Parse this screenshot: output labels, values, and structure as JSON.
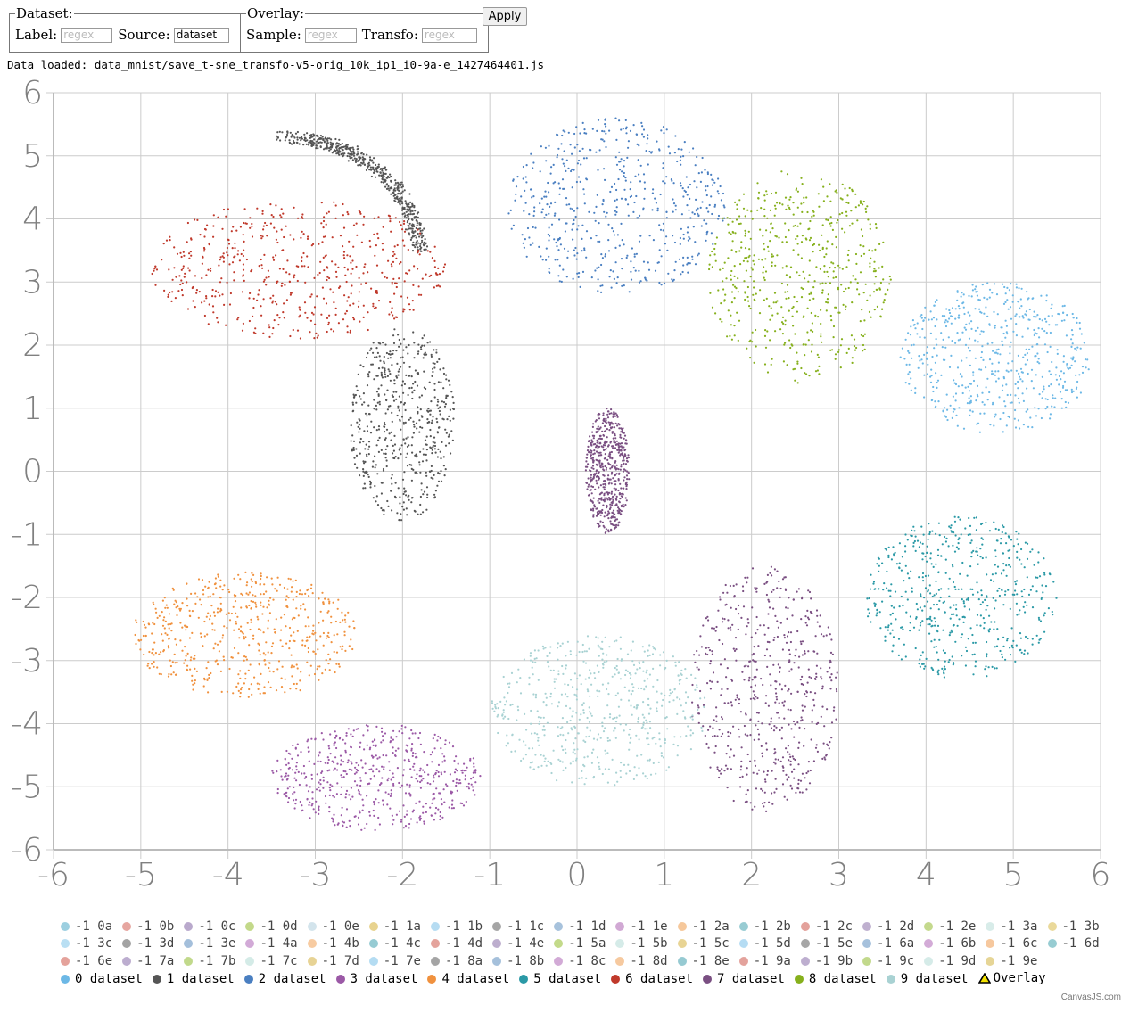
{
  "controls": {
    "dataset": {
      "legend": "Dataset:",
      "label_text": "Label:",
      "label_placeholder": "regex",
      "source_text": "Source:",
      "source_value": "dataset"
    },
    "overlay": {
      "legend": "Overlay:",
      "sample_text": "Sample:",
      "sample_placeholder": "regex",
      "transfo_text": "Transfo:",
      "transfo_placeholder": "regex"
    },
    "apply_label": "Apply"
  },
  "status": {
    "text": "Data loaded: data_mnist/save_t-sne_transfo-v5-orig_10k_ip1_i0-9a-e_1427464401.js"
  },
  "credit": "CanvasJS.com",
  "chart_data": {
    "type": "scatter",
    "xlim": [
      -6,
      6
    ],
    "ylim": [
      -6,
      6
    ],
    "x_ticks": [
      -6,
      -5,
      -4,
      -3,
      -2,
      -1,
      0,
      1,
      2,
      3,
      4,
      5,
      6
    ],
    "y_ticks": [
      -6,
      -5,
      -4,
      -3,
      -2,
      -1,
      0,
      1,
      2,
      3,
      4,
      5,
      6
    ],
    "grid": true,
    "legend_position": "bottom",
    "series": [
      {
        "label": "0 dataset",
        "color": "#6cb8e6",
        "clusters": [
          {
            "x": [
              3.7,
              5.9
            ],
            "y": [
              0.6,
              3.0
            ]
          }
        ]
      },
      {
        "label": "1 dataset",
        "color": "#555555",
        "clusters": [
          {
            "x": [
              -2.6,
              -1.4
            ],
            "y": [
              -0.8,
              2.3
            ]
          },
          {
            "arc_from": [
              -3.4,
              5.3
            ],
            "arc_mid": [
              -2.0,
              5.2
            ],
            "arc_to": [
              -1.8,
              3.5
            ]
          }
        ]
      },
      {
        "label": "2 dataset",
        "color": "#4a7fc1",
        "clusters": [
          {
            "x": [
              -0.8,
              1.7
            ],
            "y": [
              2.8,
              5.6
            ]
          }
        ]
      },
      {
        "label": "3 dataset",
        "color": "#9b59a6",
        "clusters": [
          {
            "x": [
              -3.5,
              -1.1
            ],
            "y": [
              -5.7,
              -4.0
            ]
          }
        ]
      },
      {
        "label": "4 dataset",
        "color": "#f0913e",
        "clusters": [
          {
            "x": [
              -5.1,
              -2.5
            ],
            "y": [
              -3.6,
              -1.6
            ]
          }
        ]
      },
      {
        "label": "5 dataset",
        "color": "#2a99a6",
        "clusters": [
          {
            "x": [
              3.3,
              5.5
            ],
            "y": [
              -3.3,
              -0.7
            ]
          }
        ]
      },
      {
        "label": "6 dataset",
        "color": "#c0392b",
        "clusters": [
          {
            "x": [
              -4.9,
              -1.5
            ],
            "y": [
              2.1,
              4.3
            ]
          }
        ]
      },
      {
        "label": "7 dataset",
        "color": "#7a4f82",
        "clusters": [
          {
            "x": [
              1.3,
              3.0
            ],
            "y": [
              -5.4,
              -1.5
            ]
          },
          {
            "x": [
              0.1,
              0.6
            ],
            "y": [
              -1.0,
              1.0
            ]
          }
        ]
      },
      {
        "label": "8 dataset",
        "color": "#86b01c",
        "clusters": [
          {
            "x": [
              1.5,
              3.6
            ],
            "y": [
              1.4,
              4.8
            ]
          }
        ]
      },
      {
        "label": "9 dataset",
        "color": "#a9d2d3",
        "clusters": [
          {
            "x": [
              -1.0,
              1.5
            ],
            "y": [
              -5.0,
              -2.6
            ]
          }
        ]
      }
    ],
    "legend": [
      {
        "label": "-1 0a",
        "color": "#9ccfe0"
      },
      {
        "label": "-1 0b",
        "color": "#e6a6a0"
      },
      {
        "label": "-1 0c",
        "color": "#b9a9cc"
      },
      {
        "label": "-1 0d",
        "color": "#c3d98a"
      },
      {
        "label": "-1 0e",
        "color": "#d3e4ec"
      },
      {
        "label": "-1 1a",
        "color": "#e8d38f"
      },
      {
        "label": "-1 1b",
        "color": "#b6dcf2"
      },
      {
        "label": "-1 1c",
        "color": "#a5a5a5"
      },
      {
        "label": "-1 1d",
        "color": "#a7c2dc"
      },
      {
        "label": "-1 1e",
        "color": "#d1a9d4"
      },
      {
        "label": "-1 2a",
        "color": "#f6c89b"
      },
      {
        "label": "-1 2b",
        "color": "#98ccd3"
      },
      {
        "label": "-1 2c",
        "color": "#e3a19b"
      },
      {
        "label": "-1 2d",
        "color": "#bfb0cf"
      },
      {
        "label": "-1 2e",
        "color": "#c4d98d"
      },
      {
        "label": "-1 3a",
        "color": "#d8ece9"
      },
      {
        "label": "-1 3b",
        "color": "#ead99a"
      },
      {
        "label": "-1 3c",
        "color": "#b9dff3"
      },
      {
        "label": "-1 3d",
        "color": "#a3a3a3"
      },
      {
        "label": "-1 3e",
        "color": "#a4bfdb"
      },
      {
        "label": "-1 4a",
        "color": "#d2aad7"
      },
      {
        "label": "-1 4b",
        "color": "#f7cba1"
      },
      {
        "label": "-1 4c",
        "color": "#96cbd3"
      },
      {
        "label": "-1 4d",
        "color": "#e4a39c"
      },
      {
        "label": "-1 4e",
        "color": "#bdaece"
      },
      {
        "label": "-1 5a",
        "color": "#c3da8a"
      },
      {
        "label": "-1 5b",
        "color": "#d5ebe8"
      },
      {
        "label": "-1 5c",
        "color": "#e8d494"
      },
      {
        "label": "-1 5d",
        "color": "#b5dcf3"
      },
      {
        "label": "-1 5e",
        "color": "#a6a6a6"
      },
      {
        "label": "-1 6a",
        "color": "#a6c1dc"
      },
      {
        "label": "-1 6b",
        "color": "#d3abd7"
      },
      {
        "label": "-1 6c",
        "color": "#f6c89e"
      },
      {
        "label": "-1 6d",
        "color": "#97ccd2"
      },
      {
        "label": "-1 6e",
        "color": "#e4a29b"
      },
      {
        "label": "-1 7a",
        "color": "#bcadcf"
      },
      {
        "label": "-1 7b",
        "color": "#c1d98b"
      },
      {
        "label": "-1 7c",
        "color": "#d4ebe7"
      },
      {
        "label": "-1 7d",
        "color": "#e7d395"
      },
      {
        "label": "-1 7e",
        "color": "#b4dcf2"
      },
      {
        "label": "-1 8a",
        "color": "#a4a4a4"
      },
      {
        "label": "-1 8b",
        "color": "#a5c0db"
      },
      {
        "label": "-1 8c",
        "color": "#d2aad6"
      },
      {
        "label": "-1 8d",
        "color": "#f6c99f"
      },
      {
        "label": "-1 8e",
        "color": "#96cad2"
      },
      {
        "label": "-1 9a",
        "color": "#e3a29c"
      },
      {
        "label": "-1 9b",
        "color": "#bdaecf"
      },
      {
        "label": "-1 9c",
        "color": "#c2d98c"
      },
      {
        "label": "-1 9d",
        "color": "#d5ebe8"
      },
      {
        "label": "-1 9e",
        "color": "#e6d596"
      },
      {
        "label": "0 dataset",
        "color": "#6cb8e6",
        "main": true
      },
      {
        "label": "1 dataset",
        "color": "#555555",
        "main": true
      },
      {
        "label": "2 dataset",
        "color": "#4a7fc1",
        "main": true
      },
      {
        "label": "3 dataset",
        "color": "#9b59a6",
        "main": true
      },
      {
        "label": "4 dataset",
        "color": "#f0913e",
        "main": true
      },
      {
        "label": "5 dataset",
        "color": "#2a99a6",
        "main": true
      },
      {
        "label": "6 dataset",
        "color": "#c0392b",
        "main": true
      },
      {
        "label": "7 dataset",
        "color": "#7a4f82",
        "main": true
      },
      {
        "label": "8 dataset",
        "color": "#86b01c",
        "main": true
      },
      {
        "label": "9 dataset",
        "color": "#a9d2d3",
        "main": true
      },
      {
        "label": "Overlay",
        "color": "#f4e300",
        "main": true,
        "marker": "triangle"
      }
    ]
  }
}
